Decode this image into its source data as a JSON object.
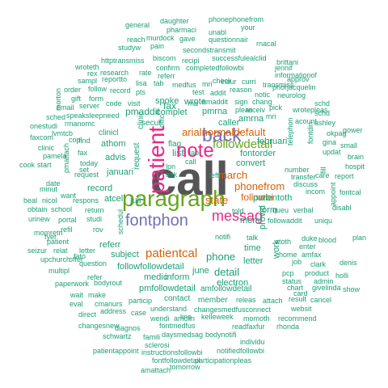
{
  "palette": {
    "teal": "#1b9e77",
    "dark_gray": "#555555",
    "green": "#66a61e",
    "magenta": "#e7298a",
    "purple": "#7570b3",
    "orange": "#d95f02"
  },
  "words": [
    {
      "text": "call",
      "color": "#555555"
    },
    {
      "text": "paragraph",
      "color": "#66a61e"
    },
    {
      "text": "patient",
      "color": "#e7298a"
    },
    {
      "text": "note",
      "color": "#e7298a"
    },
    {
      "text": "back",
      "color": "#7570b3"
    },
    {
      "text": "fontphon",
      "color": "#7570b3"
    },
    {
      "text": "messag",
      "color": "#e7298a"
    },
    {
      "text": "followdetail",
      "color": "#66a61e"
    },
    {
      "text": "arialnormaldefault",
      "color": "#d95f02"
    },
    {
      "text": "patientcal",
      "color": "#d95f02"
    },
    {
      "text": "phonefrom",
      "color": "#d95f02"
    },
    {
      "text": "state",
      "color": "#d95f02"
    },
    {
      "text": "march",
      "color": "#d95f02"
    },
    {
      "text": "followbi",
      "color": "#d95f02"
    },
    {
      "text": "phone",
      "color": "#1b9e77"
    },
    {
      "text": "pmaddit",
      "color": "#1b9e77"
    },
    {
      "text": "fax",
      "color": "#1b9e77"
    },
    {
      "text": "list",
      "color": "#1b9e77"
    },
    {
      "text": "detail",
      "color": "#1b9e77"
    },
    {
      "text": "followfollowdetail",
      "color": "#1b9e77"
    },
    {
      "text": "pmfollowdetail",
      "color": "#1b9e77"
    },
    {
      "text": "subject",
      "color": "#1b9e77"
    },
    {
      "text": "inform",
      "color": "#1b9e77"
    },
    {
      "text": "medic",
      "color": "#1b9e77"
    },
    {
      "text": "electron",
      "color": "#1b9e77"
    },
    {
      "text": "letter",
      "color": "#1b9e77"
    },
    {
      "text": "june",
      "color": "#1b9e77"
    },
    {
      "text": "spoke",
      "color": "#1b9e77"
    },
    {
      "text": "record",
      "color": "#1b9e77"
    },
    {
      "text": "atcel",
      "color": "#1b9e77"
    },
    {
      "text": "juli",
      "color": "#1b9e77"
    },
    {
      "text": "referr",
      "color": "#1b9e77"
    },
    {
      "text": "athom",
      "color": "#1b9e77"
    },
    {
      "text": "advis",
      "color": "#1b9e77"
    },
    {
      "text": "januari",
      "color": "#1b9e77"
    },
    {
      "text": "request",
      "color": "#1b9e77"
    },
    {
      "text": "clinic",
      "color": "#1b9e77"
    },
    {
      "text": "clinicl",
      "color": "#1b9e77"
    },
    {
      "text": "secur",
      "color": "#1b9e77"
    },
    {
      "text": "wrote",
      "color": "#1b9e77"
    },
    {
      "text": "complet",
      "color": "#1b9e77"
    },
    {
      "text": "pmrna",
      "color": "#1b9e77"
    },
    {
      "text": "caller",
      "color": "#1b9e77"
    },
    {
      "text": "februari",
      "color": "#1b9e77"
    },
    {
      "text": "convert",
      "color": "#1b9e77"
    },
    {
      "text": "fontorder",
      "color": "#1b9e77"
    },
    {
      "text": "patientoth",
      "color": "#1b9e77"
    },
    {
      "text": "mom",
      "color": "#1b9e77"
    },
    {
      "text": "time",
      "color": "#1b9e77"
    },
    {
      "text": "form",
      "color": "#1b9e77"
    },
    {
      "text": "provid",
      "color": "#1b9e77"
    },
    {
      "text": "amrna",
      "color": "#1b9e77"
    },
    {
      "text": "work",
      "color": "#1b9e77"
    },
    {
      "text": "contact",
      "color": "#1b9e77"
    },
    {
      "text": "member",
      "color": "#1b9e77"
    },
    {
      "text": "amfollowdetail",
      "color": "#1b9e77"
    },
    {
      "text": "phonephonefrom",
      "color": "#1b9e77"
    },
    {
      "text": "daughter",
      "color": "#1b9e77"
    },
    {
      "text": "general",
      "color": "#1b9e77"
    },
    {
      "text": "pharmaci",
      "color": "#1b9e77"
    },
    {
      "text": "unabl",
      "color": "#1b9e77"
    },
    {
      "text": "your",
      "color": "#1b9e77"
    },
    {
      "text": "reach",
      "color": "#1b9e77"
    },
    {
      "text": "murdock",
      "color": "#1b9e77"
    },
    {
      "text": "gave",
      "color": "#1b9e77"
    },
    {
      "text": "questionnair",
      "color": "#1b9e77"
    },
    {
      "text": "rnacal",
      "color": "#1b9e77"
    },
    {
      "text": "studyw",
      "color": "#1b9e77"
    },
    {
      "text": "pain",
      "color": "#1b9e77"
    },
    {
      "text": "secondstransmit",
      "color": "#1b9e77"
    },
    {
      "text": "httptransmiss",
      "color": "#1b9e77"
    },
    {
      "text": "biscom",
      "color": "#1b9e77"
    },
    {
      "text": "recipi",
      "color": "#1b9e77"
    },
    {
      "text": "successfulealclid",
      "color": "#1b9e77"
    },
    {
      "text": "brittani",
      "color": "#1b9e77"
    },
    {
      "text": "wroteth",
      "color": "#1b9e77"
    },
    {
      "text": "rex",
      "color": "#1b9e77"
    },
    {
      "text": "research",
      "color": "#1b9e77"
    },
    {
      "text": "rate",
      "color": "#1b9e77"
    },
    {
      "text": "referr",
      "color": "#1b9e77"
    },
    {
      "text": "confirm",
      "color": "#1b9e77"
    },
    {
      "text": "completedfollowbi",
      "color": "#1b9e77"
    },
    {
      "text": "jennif",
      "color": "#1b9e77"
    },
    {
      "text": "informationof",
      "color": "#1b9e77"
    },
    {
      "text": "sampl",
      "color": "#1b9e77"
    },
    {
      "text": "reportto",
      "color": "#1b9e77"
    },
    {
      "text": "lisa",
      "color": "#1b9e77"
    },
    {
      "text": "tab",
      "color": "#1b9e77"
    },
    {
      "text": "medfus",
      "color": "#1b9e77"
    },
    {
      "text": "mri",
      "color": "#1b9e77"
    },
    {
      "text": "insur",
      "color": "#1b9e77"
    },
    {
      "text": "curri",
      "color": "#1b9e77"
    },
    {
      "text": "transmiss",
      "color": "#1b9e77"
    },
    {
      "text": "approv",
      "color": "#1b9e77"
    },
    {
      "text": "order",
      "color": "#1b9e77"
    },
    {
      "text": "follow",
      "color": "#1b9e77"
    },
    {
      "text": "record",
      "color": "#1b9e77"
    },
    {
      "text": "pts",
      "color": "#1b9e77"
    },
    {
      "text": "reason",
      "color": "#1b9e77"
    },
    {
      "text": "gift",
      "color": "#1b9e77"
    },
    {
      "text": "form",
      "color": "#1b9e77"
    },
    {
      "text": "test",
      "color": "#1b9e77"
    },
    {
      "text": "addit",
      "color": "#1b9e77"
    },
    {
      "text": "notic",
      "color": "#1b9e77"
    },
    {
      "text": "email",
      "color": "#1b9e77"
    },
    {
      "text": "server",
      "color": "#1b9e77"
    },
    {
      "text": "code",
      "color": "#1b9e77"
    },
    {
      "text": "visit",
      "color": "#1b9e77"
    },
    {
      "text": "rna",
      "color": "#1b9e77"
    },
    {
      "text": "amaddit",
      "color": "#1b9e77"
    },
    {
      "text": "sign",
      "color": "#1b9e77"
    },
    {
      "text": "pick",
      "color": "#1b9e77"
    },
    {
      "text": "schd",
      "color": "#1b9e77"
    },
    {
      "text": "sched",
      "color": "#1b9e77"
    },
    {
      "text": "speaksleepneed",
      "color": "#1b9e77"
    },
    {
      "text": "rmanomc",
      "color": "#1b9e77"
    },
    {
      "text": "onestudi",
      "color": "#1b9e77"
    },
    {
      "text": "faxcom",
      "color": "#1b9e77"
    },
    {
      "text": "cook",
      "color": "#1b9e77"
    },
    {
      "text": "start",
      "color": "#1b9e77"
    },
    {
      "text": "pamela",
      "color": "#1b9e77"
    },
    {
      "text": "clinic",
      "color": "#1b9e77"
    },
    {
      "text": "lvmtcb",
      "color": "#1b9e77"
    },
    {
      "text": "copi",
      "color": "#1b9e77"
    },
    {
      "text": "find",
      "color": "#1b9e77"
    },
    {
      "text": "fax",
      "color": "#1b9e77"
    },
    {
      "text": "set",
      "color": "#1b9e77"
    },
    {
      "text": "today",
      "color": "#1b9e77"
    },
    {
      "text": "request",
      "color": "#1b9e77"
    },
    {
      "text": "date",
      "color": "#1b9e77"
    },
    {
      "text": "minut",
      "color": "#1b9e77"
    },
    {
      "text": "beal",
      "color": "#1b9e77"
    },
    {
      "text": "nicol",
      "color": "#1b9e77"
    },
    {
      "text": "respons",
      "color": "#1b9e77"
    },
    {
      "text": "obtain",
      "color": "#1b9e77"
    },
    {
      "text": "school",
      "color": "#1b9e77"
    },
    {
      "text": "return",
      "color": "#1b9e77"
    },
    {
      "text": "urinew",
      "color": "#1b9e77"
    },
    {
      "text": "portal",
      "color": "#1b9e77"
    },
    {
      "text": "studi",
      "color": "#1b9e77"
    },
    {
      "text": "momretri",
      "color": "#1b9e77"
    },
    {
      "text": "patient",
      "color": "#1b9e77"
    },
    {
      "text": "seizur",
      "color": "#1b9e77"
    },
    {
      "text": "relat",
      "color": "#1b9e77"
    },
    {
      "text": "letter",
      "color": "#1b9e77"
    },
    {
      "text": "upchurch",
      "color": "#1b9e77"
    },
    {
      "text": "multipl",
      "color": "#1b9e77"
    },
    {
      "text": "question",
      "color": "#1b9e77"
    },
    {
      "text": "paperwork",
      "color": "#1b9e77"
    },
    {
      "text": "bodyrout",
      "color": "#1b9e77"
    },
    {
      "text": "wait",
      "color": "#1b9e77"
    },
    {
      "text": "make",
      "color": "#1b9e77"
    },
    {
      "text": "eval",
      "color": "#1b9e77"
    },
    {
      "text": "cmanurs",
      "color": "#1b9e77"
    },
    {
      "text": "direct",
      "color": "#1b9e77"
    },
    {
      "text": "address",
      "color": "#1b9e77"
    },
    {
      "text": "case",
      "color": "#1b9e77"
    },
    {
      "text": "changesnew",
      "color": "#1b9e77"
    },
    {
      "text": "diagnos",
      "color": "#1b9e77"
    },
    {
      "text": "schwartz",
      "color": "#1b9e77"
    },
    {
      "text": "famili",
      "color": "#1b9e77"
    },
    {
      "text": "daysmedsag",
      "color": "#1b9e77"
    },
    {
      "text": "bodynotifi",
      "color": "#1b9e77"
    },
    {
      "text": "sclerosi",
      "color": "#1b9e77"
    },
    {
      "text": "instructionsfollowbi",
      "color": "#1b9e77"
    },
    {
      "text": "patientappoint",
      "color": "#1b9e77"
    },
    {
      "text": "fontfollowdetail",
      "color": "#1b9e77"
    },
    {
      "text": "notifiedfollowbi",
      "color": "#1b9e77"
    },
    {
      "text": "participationpleas",
      "color": "#1b9e77"
    },
    {
      "text": "amattach",
      "color": "#1b9e77"
    },
    {
      "text": "tomorrow",
      "color": "#1b9e77"
    },
    {
      "text": "particip",
      "color": "#1b9e77"
    },
    {
      "text": "understand",
      "color": "#1b9e77"
    },
    {
      "text": "changesmedfusconnect",
      "color": "#1b9e77"
    },
    {
      "text": "websit",
      "color": "#1b9e77"
    },
    {
      "text": "fontmedfus",
      "color": "#1b9e77"
    },
    {
      "text": "readfaxfur",
      "color": "#1b9e77"
    },
    {
      "text": "rhonda",
      "color": "#1b9e77"
    },
    {
      "text": "wendi",
      "color": "#1b9e77"
    },
    {
      "text": "amclin",
      "color": "#1b9e77"
    },
    {
      "text": "line",
      "color": "#1b9e77"
    },
    {
      "text": "kelleweek",
      "color": "#1b9e77"
    },
    {
      "text": "momoth",
      "color": "#1b9e77"
    },
    {
      "text": "recommend",
      "color": "#1b9e77"
    },
    {
      "text": "individu",
      "color": "#1b9e77"
    },
    {
      "text": "releas",
      "color": "#1b9e77"
    },
    {
      "text": "attach",
      "color": "#1b9e77"
    },
    {
      "text": "result",
      "color": "#1b9e77"
    },
    {
      "text": "cancel",
      "color": "#1b9e77"
    },
    {
      "text": "fato",
      "color": "#1b9e77"
    },
    {
      "text": "refil",
      "color": "#1b9e77"
    },
    {
      "text": "fyer",
      "color": "#1b9e77"
    },
    {
      "text": "offer",
      "color": "#1b9e77"
    },
    {
      "text": "refer",
      "color": "#1b9e77"
    },
    {
      "text": "notifi",
      "color": "#1b9e77"
    },
    {
      "text": "ask",
      "color": "#1b9e77"
    },
    {
      "text": "lpn",
      "color": "#1b9e77"
    },
    {
      "text": "told",
      "color": "#1b9e77"
    },
    {
      "text": "talk",
      "color": "#1b9e77"
    },
    {
      "text": "atoth",
      "color": "#1b9e77"
    },
    {
      "text": "duke",
      "color": "#1b9e77"
    },
    {
      "text": "blood",
      "color": "#1b9e77"
    },
    {
      "text": "home",
      "color": "#1b9e77"
    },
    {
      "text": "amfax",
      "color": "#1b9e77"
    },
    {
      "text": "job",
      "color": "#1b9e77"
    },
    {
      "text": "clark",
      "color": "#1b9e77"
    },
    {
      "text": "denis",
      "color": "#1b9e77"
    },
    {
      "text": "pcp",
      "color": "#1b9e77"
    },
    {
      "text": "product",
      "color": "#1b9e77"
    },
    {
      "text": "status",
      "color": "#1b9e77"
    },
    {
      "text": "admin",
      "color": "#1b9e77"
    },
    {
      "text": "chart",
      "color": "#1b9e77"
    },
    {
      "text": "givelinda",
      "color": "#1b9e77"
    },
    {
      "text": "show",
      "color": "#1b9e77"
    },
    {
      "text": "card",
      "color": "#1b9e77"
    },
    {
      "text": "holli",
      "color": "#1b9e77"
    },
    {
      "text": "enter",
      "color": "#1b9e77"
    },
    {
      "text": "number",
      "color": "#1b9e77"
    },
    {
      "text": "transfer",
      "color": "#1b9e77"
    },
    {
      "text": "discuss",
      "color": "#1b9e77"
    },
    {
      "text": "queu",
      "color": "#1b9e77"
    },
    {
      "text": "verbal",
      "color": "#1b9e77"
    },
    {
      "text": "followaddit",
      "color": "#1b9e77"
    },
    {
      "text": "uniqu",
      "color": "#1b9e77"
    },
    {
      "text": "incom",
      "color": "#1b9e77"
    },
    {
      "text": "care",
      "color": "#1b9e77"
    },
    {
      "text": "report",
      "color": "#1b9e77"
    },
    {
      "text": "disabl",
      "color": "#1b9e77"
    },
    {
      "text": "plan",
      "color": "#1b9e77"
    },
    {
      "text": "fontcal",
      "color": "#1b9e77"
    },
    {
      "text": "hospit",
      "color": "#1b9e77"
    },
    {
      "text": "brain",
      "color": "#1b9e77"
    },
    {
      "text": "updat",
      "color": "#1b9e77"
    },
    {
      "text": "gina",
      "color": "#1b9e77"
    },
    {
      "text": "small",
      "color": "#1b9e77"
    },
    {
      "text": "gower",
      "color": "#1b9e77"
    },
    {
      "text": "okpag",
      "color": "#1b9e77"
    },
    {
      "text": "ashley",
      "color": "#1b9e77"
    },
    {
      "text": "acount",
      "color": "#1b9e77"
    },
    {
      "text": "schd",
      "color": "#1b9e77"
    },
    {
      "text": "wrotepleas",
      "color": "#1b9e77"
    },
    {
      "text": "neurolog",
      "color": "#1b9e77"
    },
    {
      "text": "priorjacquelin",
      "color": "#1b9e77"
    },
    {
      "text": "chang",
      "color": "#1b9e77"
    },
    {
      "text": "mri",
      "color": "#1b9e77"
    },
    {
      "text": "check",
      "color": "#1b9e77"
    },
    {
      "text": "pleas",
      "color": "#1b9e77"
    },
    {
      "text": "receiv",
      "color": "#1b9e77"
    },
    {
      "text": "offic",
      "color": "#1b9e77"
    },
    {
      "text": "flag",
      "color": "#1b9e77"
    },
    {
      "text": "lab",
      "color": "#1b9e77"
    },
    {
      "text": "call",
      "color": "#1b9e77"
    },
    {
      "text": "left",
      "color": "#1b9e77"
    },
    {
      "text": "morton",
      "color": "#1b9e77"
    },
    {
      "text": "fontdin",
      "color": "#1b9e77"
    },
    {
      "text": "pmattach",
      "color": "#1b9e77"
    },
    {
      "text": "want",
      "color": "#1b9e77"
    },
    {
      "text": "schedul",
      "color": "#1b9e77"
    },
    {
      "text": "fill",
      "color": "#1b9e77"
    },
    {
      "text": "telephon",
      "color": "#1b9e77"
    },
    {
      "text": "appoint",
      "color": "#1b9e77"
    },
    {
      "text": "rov",
      "color": "#1b9e77"
    }
  ]
}
